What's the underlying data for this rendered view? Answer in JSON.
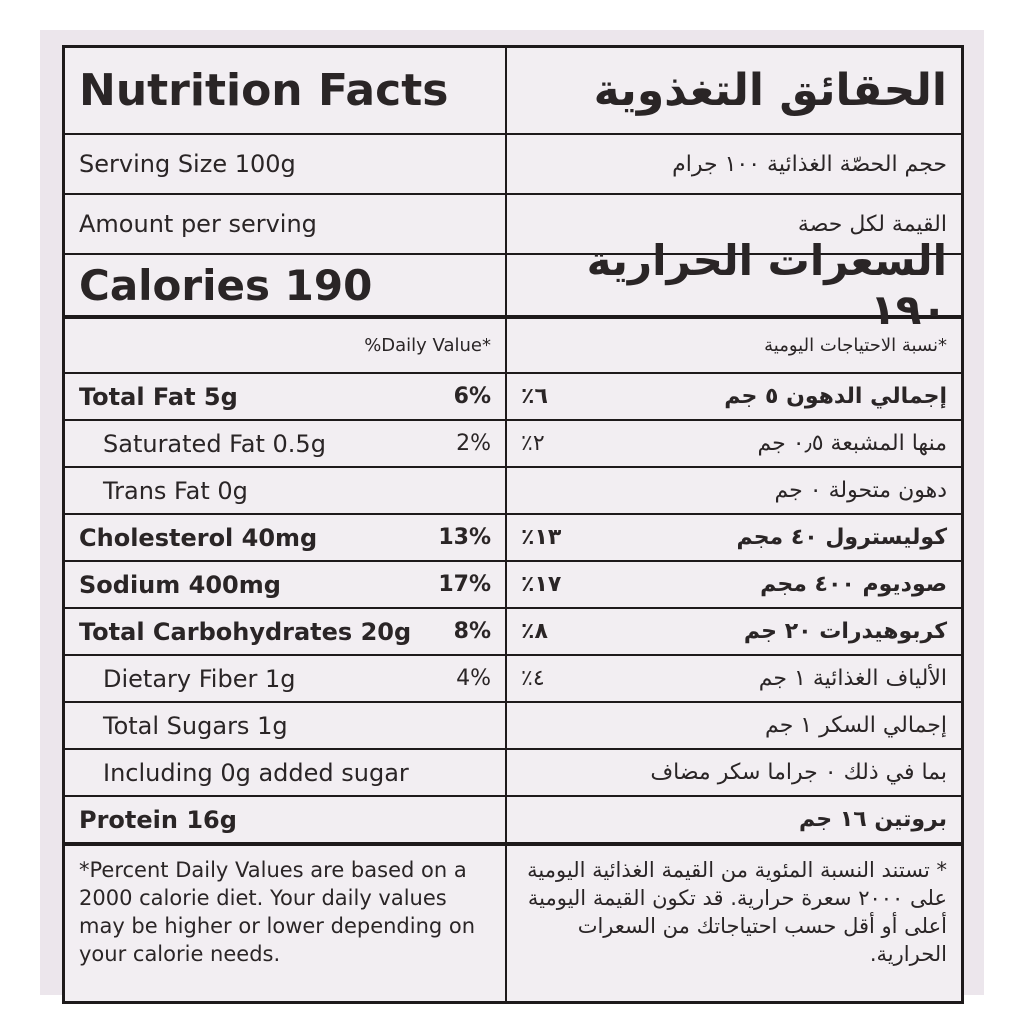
{
  "header": {
    "title": "Nutrition Facts",
    "title_ar": "الحقائق التغذوية"
  },
  "serving": {
    "en": "Serving Size 100g",
    "ar": "حجم الحصّة الغذائية ١٠٠ جرام"
  },
  "amount": {
    "en": "Amount per serving",
    "ar": "القيمة لكل حصة"
  },
  "calories": {
    "en": "Calories 190",
    "ar": "السعرات الحرارية ١٩٠"
  },
  "daily_value": {
    "en": "%Daily Value*",
    "ar": "*نسبة الاحتياجات اليومية"
  },
  "rows": [
    {
      "en": "Total Fat 5g",
      "pct": "6%",
      "ar": "إجمالي الدهون ٥ جم",
      "ar_pct": "٪٦"
    },
    {
      "en": "Saturated Fat 0.5g",
      "pct": "2%",
      "ar": "منها المشبعة ٠٫٥ جم",
      "ar_pct": "٪٢"
    },
    {
      "en": "Trans Fat 0g",
      "ar": "دهون متحولة ٠ جم"
    },
    {
      "en": "Cholesterol 40mg",
      "pct": "13%",
      "ar": "كوليسترول ٤٠ مجم",
      "ar_pct": "٪١٣"
    },
    {
      "en": "Sodium 400mg",
      "pct": "17%",
      "ar": "صوديوم ٤٠٠ مجم",
      "ar_pct": "٪١٧"
    },
    {
      "en": "Total Carbohydrates 20g",
      "pct": "8%",
      "ar": "كربوهيدرات ٢٠ جم",
      "ar_pct": "٪٨"
    },
    {
      "en": "Dietary Fiber 1g",
      "pct": "4%",
      "ar": "الألياف الغذائية ١ جم",
      "ar_pct": "٪٤"
    },
    {
      "en": "Total Sugars 1g",
      "ar": "إجمالي السكر ١ جم"
    },
    {
      "en": "Including 0g added sugar",
      "ar": "بما في ذلك ٠ جراما سكر مضاف"
    },
    {
      "en": "Protein 16g",
      "ar": "بروتين ١٦ جم"
    }
  ],
  "footnote": {
    "en": "*Percent Daily Values are based on a 2000 calorie diet. Your daily values may be higher or lower depending on your calorie needs.",
    "ar": "* تستند النسبة المئوية من القيمة الغذائية اليومية على ٢٠٠٠ سعرة حرارية. قد تكون القيمة اليومية أعلى أو أقل حسب احتياجاتك من السعرات الحرارية."
  }
}
